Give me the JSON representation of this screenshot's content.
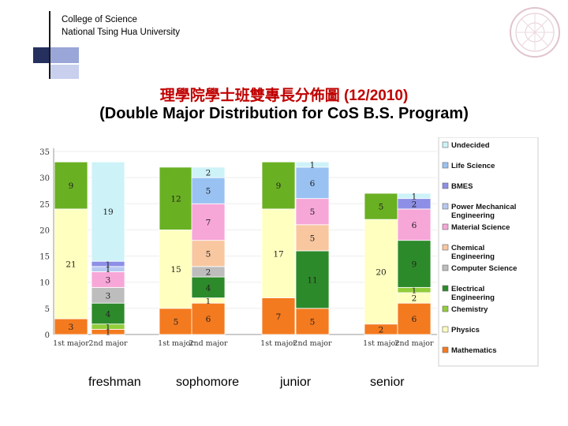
{
  "header": {
    "line1": "College of Science",
    "line2": "National Tsing Hua University"
  },
  "title": {
    "zh": "理學院學士班雙專長分佈圖 (12/2010)",
    "en": "(Double Major Distribution for CoS B.S. Program)",
    "zh_color": "#c00000",
    "en_color": "#000000"
  },
  "year_labels": [
    "freshman",
    "sophomore",
    "junior",
    "senior"
  ],
  "chart_data": {
    "type": "bar",
    "stacked": true,
    "y_ticks": [
      "0",
      "5",
      "10",
      "15",
      "20",
      "25",
      "30",
      "35"
    ],
    "ylim": [
      0,
      35
    ],
    "categories": [
      "1st major",
      "2nd major",
      "1st major",
      "2nd major",
      "1st major",
      "2nd major",
      "1st major",
      "2nd major"
    ],
    "series": [
      {
        "name": "Mathematics",
        "color": "#f47a1f",
        "values": [
          3,
          1,
          5,
          6,
          7,
          5,
          2,
          6
        ]
      },
      {
        "name": "Physics",
        "color": "#ffffc0",
        "values": [
          21,
          0,
          15,
          1,
          17,
          0,
          20,
          2
        ]
      },
      {
        "name": "Chemistry",
        "color": "#92cd3a",
        "values": [
          0,
          1,
          0,
          0,
          0,
          0,
          0,
          1
        ]
      },
      {
        "name": "Electrical Engineering",
        "color": "#2d8a2a",
        "values": [
          0,
          4,
          0,
          4,
          0,
          11,
          0,
          9
        ]
      },
      {
        "name": "Computer Science",
        "color": "#bdbdbd",
        "values": [
          0,
          3,
          0,
          2,
          0,
          0,
          0,
          0
        ]
      },
      {
        "name": "Chemical Engineering",
        "color": "#f8c7a0",
        "values": [
          0,
          0,
          0,
          5,
          0,
          5,
          0,
          0
        ]
      },
      {
        "name": "Material Science",
        "color": "#f7a6d8",
        "values": [
          0,
          3,
          0,
          7,
          0,
          5,
          0,
          6
        ]
      },
      {
        "name": "Power Mechanical Engineering",
        "color": "#b7c9f0",
        "values": [
          0,
          1,
          0,
          0,
          0,
          0,
          0,
          0
        ]
      },
      {
        "name": "BMES",
        "color": "#8d8fe6",
        "values": [
          0,
          1,
          0,
          0,
          0,
          0,
          0,
          2
        ]
      },
      {
        "name": "Life Science",
        "color": "#99c2f2",
        "values": [
          0,
          0,
          0,
          5,
          0,
          6,
          0,
          0
        ]
      },
      {
        "name": "Undecided",
        "color": "#cdf2f8",
        "values": [
          0,
          19,
          0,
          2,
          0,
          1,
          0,
          1
        ]
      },
      {
        "name": "",
        "color": "#6ab023",
        "values": [
          9,
          0,
          12,
          0,
          9,
          0,
          5,
          0
        ]
      }
    ],
    "data_labels": [
      [
        3,
        1,
        5,
        6,
        7,
        5,
        2,
        6
      ],
      [
        21,
        "",
        15,
        1,
        17,
        "",
        20,
        2
      ],
      [
        "",
        1,
        "",
        "",
        "",
        "",
        "",
        1
      ],
      [
        "",
        4,
        "",
        4,
        "",
        11,
        "",
        9
      ],
      [
        "",
        3,
        "",
        2,
        "",
        "",
        "",
        ""
      ],
      [
        "",
        "",
        "",
        5,
        "",
        5,
        "",
        ""
      ],
      [
        "",
        3,
        "",
        7,
        "",
        5,
        "",
        6
      ],
      [
        "",
        1,
        "",
        "",
        "",
        "",
        "",
        ""
      ],
      [
        "",
        1,
        "",
        "",
        "",
        "",
        "",
        2
      ],
      [
        "",
        "",
        "",
        5,
        "",
        6,
        "",
        ""
      ],
      [
        "",
        19,
        "",
        2,
        "",
        1,
        "",
        1
      ],
      [
        9,
        "",
        12,
        "",
        9,
        "",
        5,
        ""
      ]
    ],
    "legend": [
      "Undecided",
      "Life Science",
      "BMES",
      "Power Mechanical Engineering",
      "Material Science",
      "Chemical Engineering",
      "Computer Science",
      "Electrical Engineering",
      "Chemistry",
      "Physics",
      "Mathematics"
    ],
    "legend_colors": [
      "#cdf2f8",
      "#99c2f2",
      "#8d8fe6",
      "#b7c9f0",
      "#f7a6d8",
      "#f8c7a0",
      "#bdbdbd",
      "#2d8a2a",
      "#92cd3a",
      "#ffffc0",
      "#f47a1f"
    ],
    "legend_position": "right"
  }
}
